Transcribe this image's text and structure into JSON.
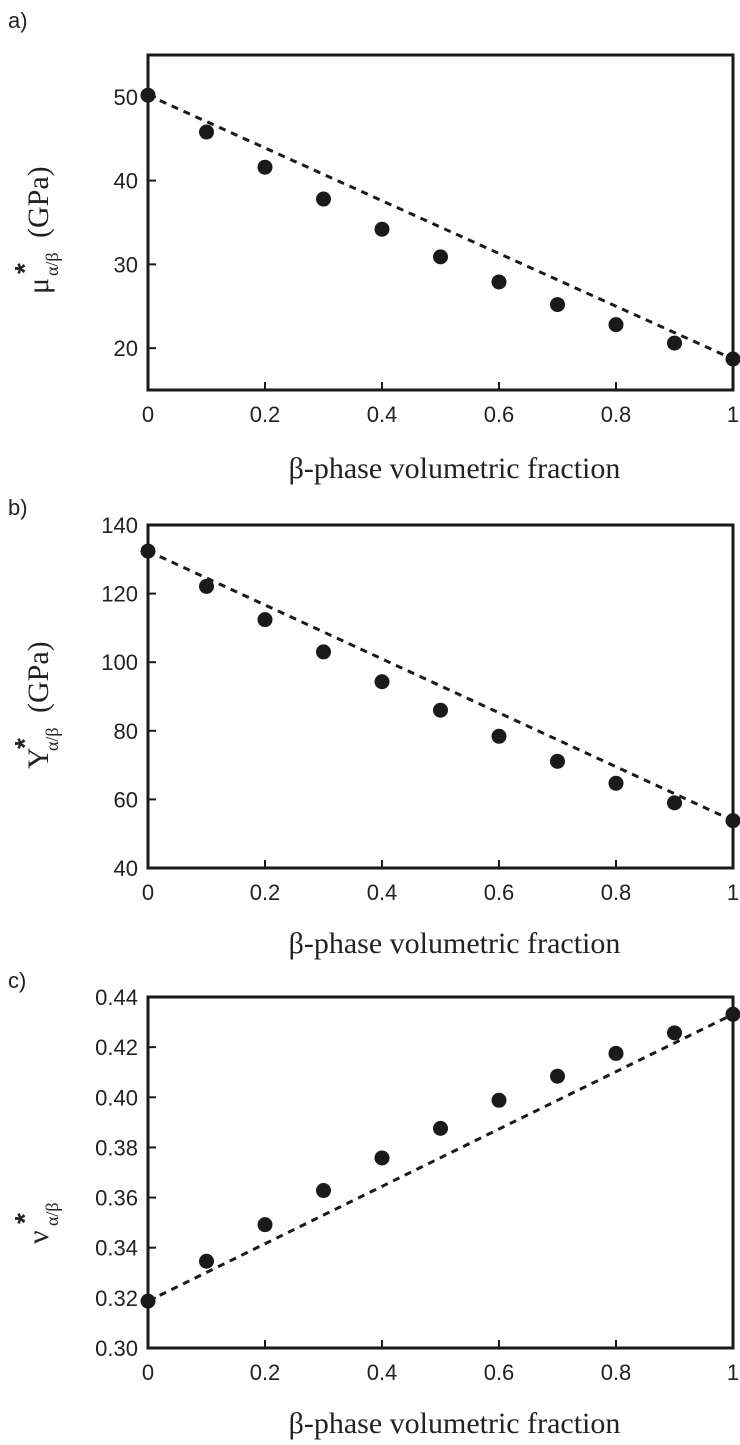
{
  "chart_data": [
    {
      "type": "scatter",
      "panel_label": "a)",
      "xlabel": "β-phase volumetric fraction",
      "ylabel": {
        "symbol": "μ",
        "star": "*",
        "subscript": "α/β",
        "unit": "(GPa)"
      },
      "xlim": [
        0,
        1
      ],
      "ylim": [
        15,
        55
      ],
      "x_ticks": [
        0,
        0.2,
        0.4,
        0.6,
        0.8,
        1
      ],
      "x_tick_labels": [
        "0",
        "0.2",
        "0.4",
        "0.6",
        "0.8",
        "1"
      ],
      "y_ticks": [
        20,
        30,
        40,
        50
      ],
      "y_tick_labels": [
        "20",
        "30",
        "40",
        "50"
      ],
      "grid": false,
      "series": [
        {
          "kind": "markers",
          "marker": "filled-circle",
          "color": "#1a1a1a",
          "x": [
            0,
            0.1,
            0.2,
            0.3,
            0.4,
            0.5,
            0.6,
            0.7,
            0.8,
            0.9,
            1
          ],
          "y": [
            50.2,
            45.8,
            41.6,
            37.8,
            34.2,
            30.9,
            27.9,
            25.2,
            22.8,
            20.6,
            18.7
          ]
        },
        {
          "kind": "dashed-line",
          "color": "#1a1a1a",
          "x": [
            0,
            1
          ],
          "y": [
            50.2,
            18.7
          ]
        }
      ]
    },
    {
      "type": "scatter",
      "panel_label": "b)",
      "xlabel": "β-phase volumetric fraction",
      "ylabel": {
        "symbol": "Y",
        "star": "*",
        "subscript": "α/β",
        "unit": "(GPa)"
      },
      "xlim": [
        0,
        1
      ],
      "ylim": [
        40,
        140
      ],
      "x_ticks": [
        0,
        0.2,
        0.4,
        0.6,
        0.8,
        1
      ],
      "x_tick_labels": [
        "0",
        "0.2",
        "0.4",
        "0.6",
        "0.8",
        "1"
      ],
      "y_ticks": [
        40,
        60,
        80,
        100,
        120,
        140
      ],
      "y_tick_labels": [
        "40",
        "60",
        "80",
        "100",
        "120",
        "140"
      ],
      "grid": false,
      "series": [
        {
          "kind": "markers",
          "marker": "filled-circle",
          "color": "#1a1a1a",
          "x": [
            0,
            0.1,
            0.2,
            0.3,
            0.4,
            0.5,
            0.6,
            0.7,
            0.8,
            0.9,
            1
          ],
          "y": [
            132.4,
            122.1,
            112.4,
            103.0,
            94.3,
            86.0,
            78.4,
            71.1,
            64.7,
            59.0,
            53.8
          ]
        },
        {
          "kind": "dashed-line",
          "color": "#1a1a1a",
          "x": [
            0,
            1
          ],
          "y": [
            132.4,
            53.8
          ]
        }
      ]
    },
    {
      "type": "scatter",
      "panel_label": "c)",
      "xlabel": "β-phase volumetric fraction",
      "ylabel": {
        "symbol": "ν",
        "star": "*",
        "subscript": "α/β",
        "unit": ""
      },
      "xlim": [
        0,
        1
      ],
      "ylim": [
        0.3,
        0.44
      ],
      "x_ticks": [
        0,
        0.2,
        0.4,
        0.6,
        0.8,
        1
      ],
      "x_tick_labels": [
        "0",
        "0.2",
        "0.4",
        "0.6",
        "0.8",
        "1"
      ],
      "y_ticks": [
        0.3,
        0.32,
        0.34,
        0.36,
        0.38,
        0.4,
        0.42,
        0.44
      ],
      "y_tick_labels": [
        "0.30",
        "0.32",
        "0.34",
        "0.36",
        "0.38",
        "0.40",
        "0.42",
        "0.44"
      ],
      "grid": false,
      "series": [
        {
          "kind": "markers",
          "marker": "filled-circle",
          "color": "#1a1a1a",
          "x": [
            0,
            0.1,
            0.2,
            0.3,
            0.4,
            0.5,
            0.6,
            0.7,
            0.8,
            0.9,
            1
          ],
          "y": [
            0.3187,
            0.3346,
            0.3492,
            0.3628,
            0.3758,
            0.3876,
            0.3988,
            0.4084,
            0.4175,
            0.4257,
            0.4331
          ]
        },
        {
          "kind": "dashed-line",
          "color": "#1a1a1a",
          "x": [
            0,
            1
          ],
          "y": [
            0.3187,
            0.4331
          ]
        }
      ]
    }
  ]
}
